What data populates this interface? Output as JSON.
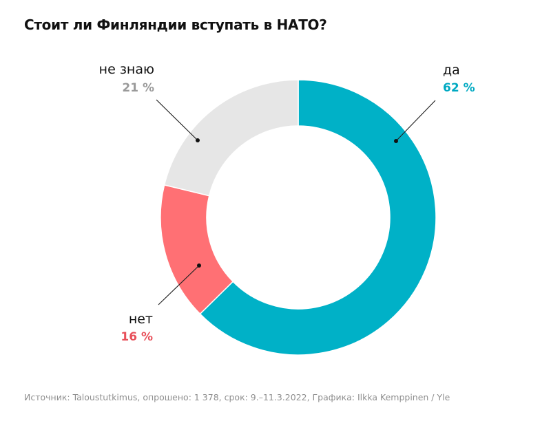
{
  "title": "Стоит ли Финляндии вступать в НАТО?",
  "source": "Источник: Taloustutkimus, опрошено: 1 378, срок: 9.–11.3.2022, Графика: Ilkka Kemppinen / Yle",
  "chart_data": {
    "type": "pie",
    "style": "donut",
    "title": "Стоит ли Финляндии вступать в НАТО?",
    "slices": [
      {
        "label": "да",
        "value": 62,
        "value_text": "62 %",
        "color": "#00b1c7"
      },
      {
        "label": "нет",
        "value": 16,
        "value_text": "16 %",
        "color": "#ff7074"
      },
      {
        "label": "не знаю",
        "value": 21,
        "value_text": "21 %",
        "color": "#e6e6e6"
      }
    ],
    "label_colors": [
      "#00a9c2",
      "#e8505a",
      "#9a9a9a"
    ],
    "legend": "none"
  }
}
